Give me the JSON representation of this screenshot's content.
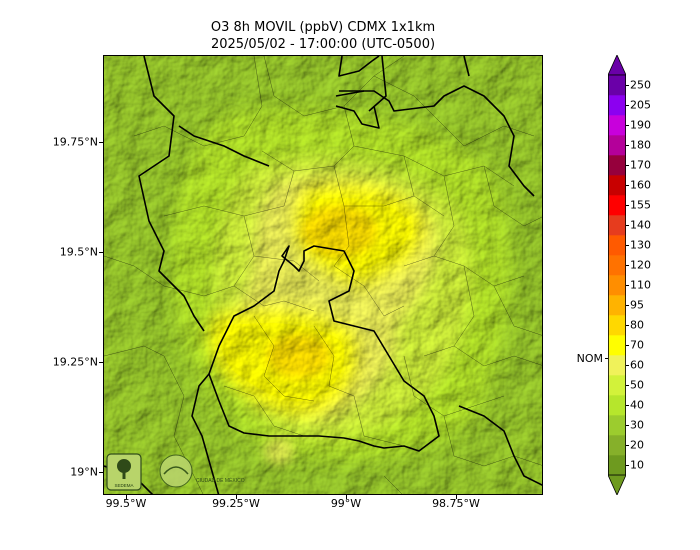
{
  "title": {
    "line1": "O3 8h MOVIL (ppbV) CDMX 1x1km",
    "line2": "2025/05/02 - 17:00:00 (UTC-0500)"
  },
  "map": {
    "lat_labels": [
      "19.75°N",
      "19.5°N",
      "19.25°N",
      "19°N"
    ],
    "lon_labels": [
      "99.5°W",
      "99.25°W",
      "99°W",
      "98.75°W"
    ],
    "logos": [
      "SEDEMA",
      "CIUDAD DE MÉXICO"
    ]
  },
  "colorbar": {
    "ticks": [
      "10",
      "20",
      "30",
      "40",
      "50",
      "60",
      "70",
      "80",
      "95",
      "110",
      "120",
      "130",
      "140",
      "155",
      "160",
      "170",
      "180",
      "190",
      "205",
      "250"
    ],
    "colors": [
      "#6e9a1f",
      "#86b02a",
      "#9ccc2e",
      "#b6e62c",
      "#d2f23a",
      "#f0f25a",
      "#fffe00",
      "#ffd800",
      "#ffb300",
      "#ff8e00",
      "#ff7200",
      "#ff5a00",
      "#e63c1e",
      "#ff0000",
      "#c80000",
      "#96003c",
      "#b4009a",
      "#c800dc",
      "#8c00f0",
      "#6a00a8"
    ],
    "nom_label": "NOM",
    "nom_value": 65
  }
}
